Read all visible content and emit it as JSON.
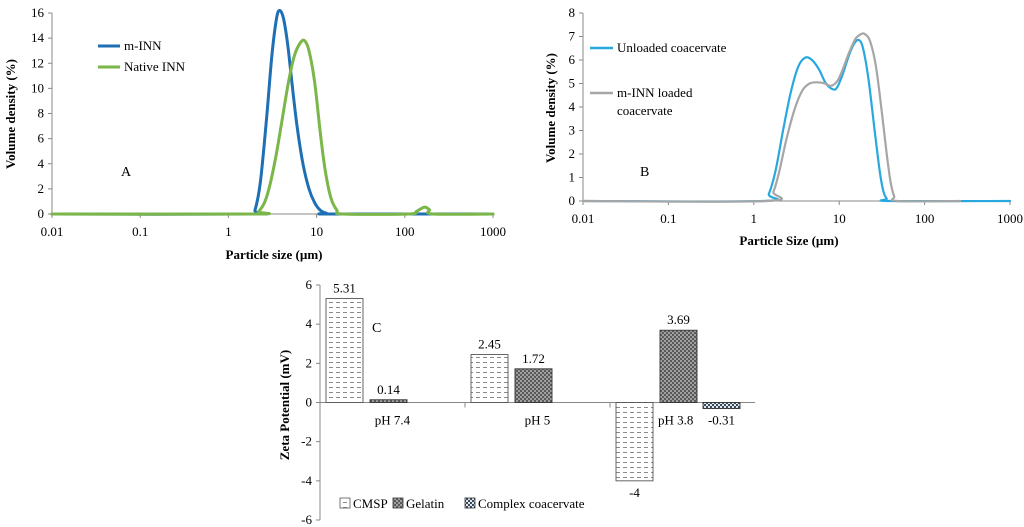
{
  "chart_data": [
    {
      "type": "line",
      "panel_label": "A",
      "xlabel": "Particle size (µm)",
      "ylabel": "Volume density (%)",
      "xscale": "log",
      "xlim": [
        0.01,
        1000
      ],
      "ylim": [
        0,
        16
      ],
      "xticks": [
        "0.01",
        "0.1",
        "1",
        "10",
        "100",
        "1000"
      ],
      "yticks": [
        "0",
        "2",
        "4",
        "6",
        "8",
        "10",
        "12",
        "14",
        "16"
      ],
      "legend_position": "top-left",
      "series": [
        {
          "name": "m-INN",
          "color": "#1f6fb4",
          "x": [
            0.01,
            1.8,
            2.0,
            2.3,
            2.7,
            3.1,
            3.5,
            3.8,
            4.2,
            4.7,
            5.3,
            6.0,
            7.0,
            8.2,
            9.5,
            11.0,
            13.0,
            15.0,
            1000
          ],
          "y": [
            0,
            0,
            0.3,
            2.5,
            7.5,
            12.5,
            15.5,
            16.2,
            15.6,
            13.5,
            10.2,
            7.0,
            4.0,
            2.0,
            0.9,
            0.3,
            0.05,
            0,
            0
          ]
        },
        {
          "name": "Native INN",
          "color": "#7ab648",
          "x": [
            0.01,
            1.9,
            2.2,
            2.6,
            3.0,
            3.5,
            4.0,
            4.8,
            5.6,
            6.5,
            7.3,
            8.2,
            9.5,
            11.0,
            12.5,
            14.5,
            17.0,
            20.0,
            110,
            135,
            155,
            170,
            190,
            210,
            1000
          ],
          "y": [
            0,
            0,
            0.2,
            1.0,
            2.5,
            4.8,
            7.2,
            10.5,
            12.6,
            13.6,
            13.8,
            13.0,
            10.5,
            6.5,
            3.5,
            1.3,
            0.3,
            0,
            0,
            0.2,
            0.45,
            0.55,
            0.35,
            0,
            0
          ]
        }
      ]
    },
    {
      "type": "line",
      "panel_label": "B",
      "xlabel": "Particle Size (µm)",
      "ylabel": "Volume density (%)",
      "xscale": "log",
      "xlim": [
        0.01,
        1000
      ],
      "ylim": [
        0,
        8
      ],
      "xticks": [
        "0.01",
        "0.1",
        "1",
        "10",
        "100",
        "1000"
      ],
      "yticks": [
        "0",
        "1",
        "2",
        "3",
        "4",
        "5",
        "6",
        "7",
        "8"
      ],
      "legend_position": "top-left",
      "series": [
        {
          "name": "Unloaded coacervate",
          "legend_lines": [
            "Unloaded coacervate"
          ],
          "color": "#29a8e0",
          "x": [
            0.01,
            1.3,
            1.5,
            1.8,
            2.2,
            2.7,
            3.3,
            4.0,
            4.8,
            5.8,
            7.0,
            8.5,
            9.5,
            11.0,
            13.0,
            15.0,
            17.0,
            19.0,
            22.0,
            26.0,
            30.0,
            33.0,
            36.0,
            40.0,
            1000
          ],
          "y": [
            0,
            0,
            0.3,
            1.3,
            3.0,
            4.6,
            5.7,
            6.1,
            6.0,
            5.6,
            5.0,
            4.75,
            4.85,
            5.4,
            6.2,
            6.7,
            6.85,
            6.5,
            5.2,
            3.0,
            1.2,
            0.4,
            0.1,
            0,
            0
          ]
        },
        {
          "name": "m-INN loaded coacervate",
          "legend_lines": [
            "m-INN loaded",
            "coacervate"
          ],
          "color": "#a6a6a6",
          "x": [
            0.01,
            1.4,
            1.7,
            2.0,
            2.4,
            3.0,
            3.7,
            4.5,
            5.5,
            6.8,
            8.0,
            9.5,
            11.0,
            13.0,
            15.5,
            18.0,
            20.0,
            23.0,
            27.0,
            32.0,
            36.0,
            40.0,
            44.0,
            48.0,
            260
          ],
          "y": [
            0,
            0,
            0.4,
            1.3,
            2.6,
            3.9,
            4.7,
            5.0,
            5.05,
            5.0,
            4.9,
            5.1,
            5.6,
            6.3,
            6.9,
            7.1,
            7.1,
            6.8,
            5.7,
            3.6,
            2.0,
            0.8,
            0.2,
            0,
            0
          ]
        }
      ]
    },
    {
      "type": "bar",
      "panel_label": "C",
      "ylabel": "Zeta Potential (mV)",
      "ylim": [
        -6,
        6
      ],
      "yticks": [
        "6",
        "4",
        "2",
        "0",
        "-2",
        "-4",
        "-6"
      ],
      "categories": [
        "pH 7.4",
        "pH 5",
        "pH 3.8"
      ],
      "legend_position": "bottom-left",
      "series": [
        {
          "name": "CMSP",
          "values": [
            5.31,
            2.45,
            -4
          ]
        },
        {
          "name": "Gelatin",
          "values": [
            0.14,
            1.72,
            3.69
          ]
        },
        {
          "name": "Complex coacervate",
          "values": [
            null,
            null,
            -0.31
          ]
        }
      ],
      "data_labels": [
        [
          "5.31",
          "0.14",
          null
        ],
        [
          "2.45",
          "1.72",
          null
        ],
        [
          "-4",
          "3.69",
          "-0.31"
        ]
      ]
    }
  ]
}
